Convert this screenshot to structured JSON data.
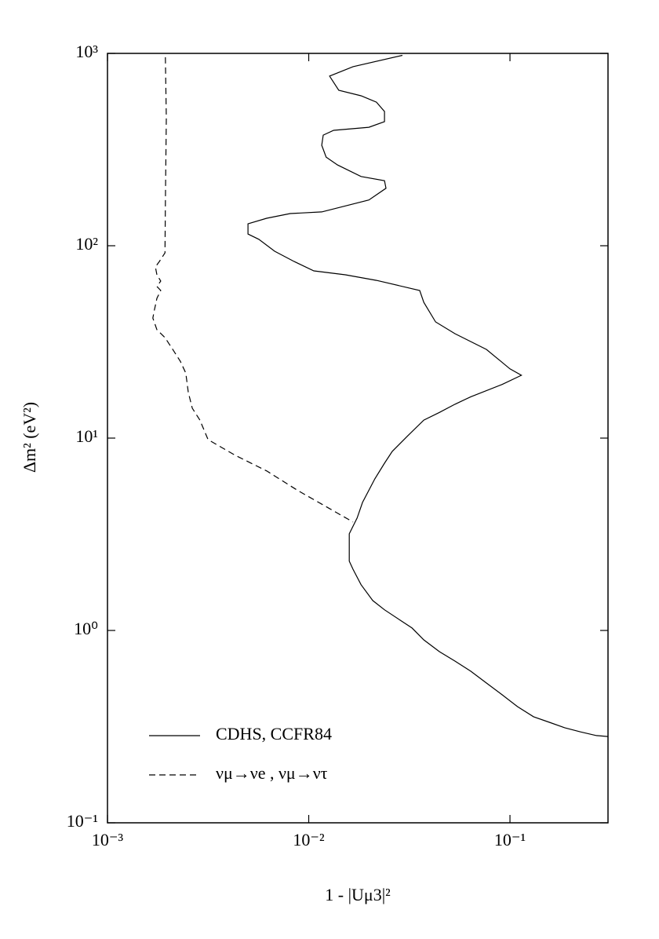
{
  "chart_data": {
    "type": "line",
    "xlabel": "1 - |Uμ3|²",
    "ylabel": "Δm² (eV²)",
    "xscale": "log",
    "yscale": "log",
    "xlim": [
      0.001,
      0.307
    ],
    "ylim": [
      0.1,
      1000
    ],
    "xticks": [
      {
        "value": 0.001,
        "label": "10⁻³"
      },
      {
        "value": 0.01,
        "label": "10⁻²"
      },
      {
        "value": 0.1,
        "label": "10⁻¹"
      }
    ],
    "yticks": [
      {
        "value": 0.1,
        "label": "10⁻¹"
      },
      {
        "value": 1,
        "label": "10⁰"
      },
      {
        "value": 10,
        "label": "10¹"
      },
      {
        "value": 100,
        "label": "10²"
      },
      {
        "value": 1000,
        "label": "10³"
      }
    ],
    "legend": "bottom-left",
    "series": [
      {
        "name": "CDHS, CCFR84",
        "color": "#000000",
        "dash": "solid",
        "x": [
          0.0292,
          0.0166,
          0.0127,
          0.0141,
          0.0182,
          0.0217,
          0.0238,
          0.0238,
          0.0199,
          0.0133,
          0.0118,
          0.0116,
          0.0122,
          0.0139,
          0.0182,
          0.0238,
          0.0242,
          0.0199,
          0.0152,
          0.0116,
          0.00809,
          0.00618,
          0.00499,
          0.00499,
          0.00565,
          0.00677,
          0.00847,
          0.0106,
          0.0152,
          0.0217,
          0.0356,
          0.0373,
          0.0427,
          0.0533,
          0.0764,
          0.1,
          0.114,
          0.0914,
          0.0638,
          0.0533,
          0.0446,
          0.0373,
          0.0311,
          0.026,
          0.0238,
          0.0213,
          0.0185,
          0.0174,
          0.0159,
          0.0159,
          0.0166,
          0.0182,
          0.0208,
          0.0238,
          0.0285,
          0.0326,
          0.0373,
          0.0446,
          0.0533,
          0.0638,
          0.0764,
          0.0914,
          0.109,
          0.131,
          0.157,
          0.187,
          0.224,
          0.269,
          0.307
        ],
        "values": [
          977,
          853,
          762,
          643,
          602,
          558,
          499,
          442,
          413,
          398,
          376,
          333,
          289,
          263,
          229,
          218,
          199,
          173,
          161,
          150,
          147,
          139,
          130,
          115,
          108,
          93.6,
          82.8,
          74.0,
          70.6,
          66.1,
          58.5,
          50.8,
          40.2,
          34.9,
          28.9,
          22.9,
          21.2,
          19.0,
          16.4,
          15.0,
          13.6,
          12.4,
          10.3,
          8.53,
          7.4,
          6.14,
          4.63,
          3.84,
          3.18,
          2.29,
          2.08,
          1.73,
          1.43,
          1.28,
          1.13,
          1.03,
          0.893,
          0.776,
          0.693,
          0.614,
          0.533,
          0.463,
          0.402,
          0.356,
          0.333,
          0.312,
          0.297,
          0.284,
          0.281
        ]
      },
      {
        "name": "νμ→νe , νμ→ντ",
        "color": "#000000",
        "dash": "dashed",
        "x": [
          0.00194,
          0.00196,
          0.00194,
          0.00193,
          0.00181,
          0.00173,
          0.00176,
          0.00184,
          0.00176,
          0.00184,
          0.00176,
          0.00171,
          0.00168,
          0.00176,
          0.00193,
          0.00211,
          0.0023,
          0.00245,
          0.00252,
          0.00264,
          0.00288,
          0.00316,
          0.00432,
          0.00618,
          0.00886,
          0.0127,
          0.0166
        ],
        "values": [
          955,
          462,
          164,
          91.8,
          82.8,
          77.6,
          70.6,
          65.5,
          61.4,
          58.5,
          53.3,
          46.3,
          42.1,
          36.6,
          33.3,
          28.9,
          25.1,
          21.8,
          17.3,
          14.3,
          12.4,
          9.82,
          8.13,
          6.75,
          5.33,
          4.3,
          3.66
        ]
      }
    ]
  }
}
